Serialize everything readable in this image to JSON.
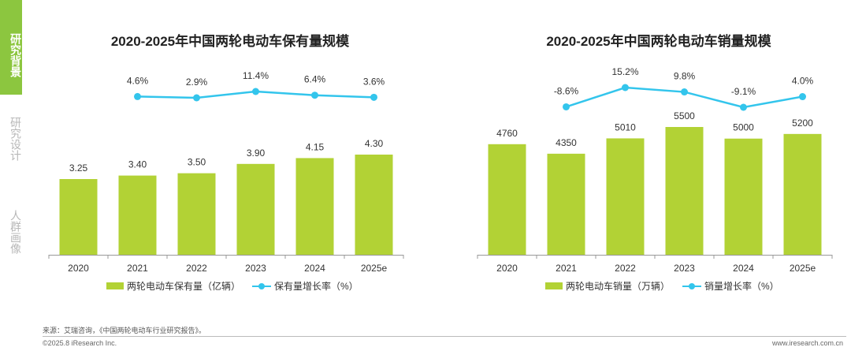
{
  "sidebar": {
    "active": "研究背景",
    "items": [
      "研究设计",
      "人群画像"
    ]
  },
  "footer": {
    "source": "来源：艾瑞咨询，《中国两轮电动车行业研究报告》。",
    "copyright": "©2025.8 iResearch Inc.",
    "website": "www.iresearch.com.cn"
  },
  "colors": {
    "bar": "#b2d235",
    "line": "#33c5ec",
    "sidebar": "#8cc63f"
  },
  "chart_data": [
    {
      "type": "bar",
      "title": "2020-2025年中国两轮电动车保有量规模",
      "categories": [
        "2020",
        "2021",
        "2022",
        "2023",
        "2024",
        "2025e"
      ],
      "series": [
        {
          "name": "两轮电动车保有量（亿辆）",
          "type": "bar",
          "values": [
            3.25,
            3.4,
            3.5,
            3.9,
            4.15,
            4.3
          ],
          "labels": [
            "3.25",
            "3.40",
            "3.50",
            "3.90",
            "4.15",
            "4.30"
          ]
        },
        {
          "name": "保有量增长率（%）",
          "type": "line",
          "values": [
            null,
            4.6,
            2.9,
            11.4,
            6.4,
            3.6
          ],
          "labels": [
            "",
            "4.6%",
            "2.9%",
            "11.4%",
            "6.4%",
            "3.6%"
          ]
        }
      ],
      "grid": false,
      "legend": "bottom"
    },
    {
      "type": "bar",
      "title": "2020-2025年中国两轮电动车销量规模",
      "categories": [
        "2020",
        "2021",
        "2022",
        "2023",
        "2024",
        "2025e"
      ],
      "series": [
        {
          "name": "两轮电动车销量（万辆）",
          "type": "bar",
          "values": [
            4760,
            4350,
            5010,
            5500,
            5000,
            5200
          ],
          "labels": [
            "4760",
            "4350",
            "5010",
            "5500",
            "5000",
            "5200"
          ]
        },
        {
          "name": "销量增长率（%）",
          "type": "line",
          "values": [
            null,
            -8.6,
            15.2,
            9.8,
            -9.1,
            4.0
          ],
          "labels": [
            "",
            "-8.6%",
            "15.2%",
            "9.8%",
            "-9.1%",
            "4.0%"
          ]
        }
      ],
      "grid": false,
      "legend": "bottom"
    }
  ]
}
